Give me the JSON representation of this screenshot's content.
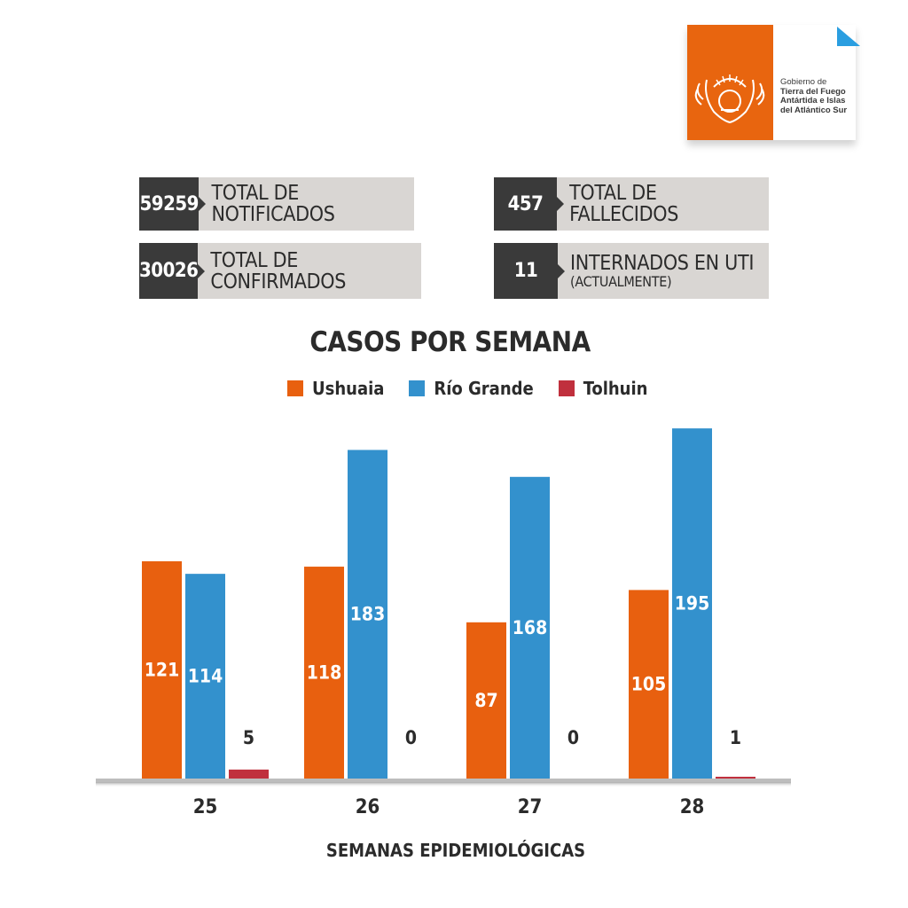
{
  "logo": {
    "line1": "Gobierno de",
    "line2": "Tierra del Fuego",
    "line3": "Antártida e Islas",
    "line4": "del Atlántico Sur",
    "color": "#e8650f"
  },
  "stats": {
    "notificados": {
      "value": "59259",
      "label": "TOTAL DE NOTIFICADOS"
    },
    "fallecidos": {
      "value": "457",
      "label": "TOTAL DE FALLECIDOS"
    },
    "confirmados": {
      "value": "30026",
      "label": "TOTAL DE CONFIRMADOS"
    },
    "uti": {
      "value": "11",
      "label": "INTERNADOS EN UTI",
      "sublabel": "(ACTUALMENTE)"
    }
  },
  "chart_data": {
    "type": "bar",
    "title": "CASOS POR SEMANA",
    "xlabel": "SEMANAS EPIDEMIOLÓGICAS",
    "ylabel": "",
    "categories": [
      "25",
      "26",
      "27",
      "28"
    ],
    "series": [
      {
        "name": "Ushuaia",
        "color": "#e8600f",
        "values": [
          121,
          118,
          87,
          105
        ]
      },
      {
        "name": "Río Grande",
        "color": "#3391cd",
        "values": [
          114,
          183,
          168,
          195
        ]
      },
      {
        "name": "Tolhuin",
        "color": "#c0303d",
        "values": [
          5,
          0,
          0,
          1
        ]
      }
    ],
    "ylim": [
      0,
      200
    ],
    "legend": "top-center",
    "grid": false
  }
}
